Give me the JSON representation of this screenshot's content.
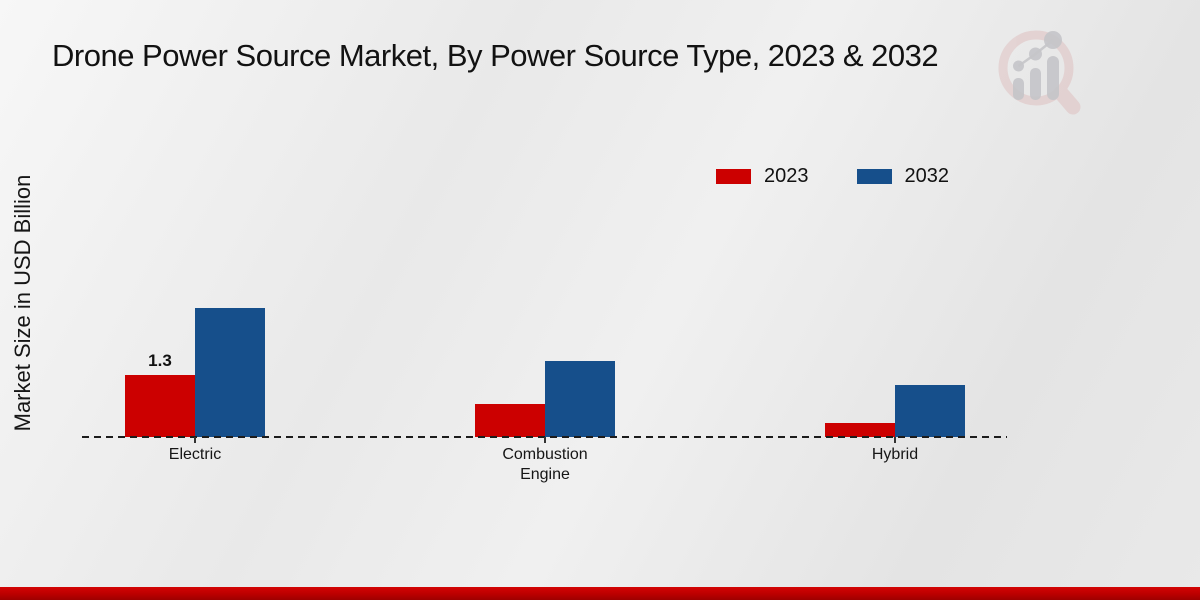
{
  "title": "Drone Power Source Market, By Power Source Type, 2023 & 2032",
  "y_axis_label": "Market Size in USD Billion",
  "legend": {
    "items": [
      {
        "label": "2023",
        "color": "#cc0000"
      },
      {
        "label": "2032",
        "color": "#164f8b"
      }
    ],
    "position": "top-right"
  },
  "chart_data": {
    "type": "bar",
    "title": "Drone Power Source Market, By Power Source Type, 2023 & 2032",
    "xlabel": "",
    "ylabel": "Market Size in USD Billion",
    "categories": [
      "Electric",
      "Combustion Engine",
      "Hybrid"
    ],
    "series": [
      {
        "name": "2023",
        "color": "#cc0000",
        "values": [
          1.3,
          0.7,
          0.3
        ]
      },
      {
        "name": "2032",
        "color": "#164f8b",
        "values": [
          2.7,
          1.6,
          1.1
        ]
      }
    ],
    "bar_labels": [
      [
        "1.3",
        "",
        ""
      ],
      [
        "",
        "",
        ""
      ]
    ],
    "ylim": [
      0,
      3
    ],
    "grid": false,
    "baseline_style": "dashed",
    "legend_position": "top-right"
  },
  "branding": {
    "logo_name": "magnifier-bar-chart-logo",
    "footer_color": "#bb0000",
    "logo_ring_color": "#debdbd",
    "logo_bar_color": "#c5c5c9"
  }
}
